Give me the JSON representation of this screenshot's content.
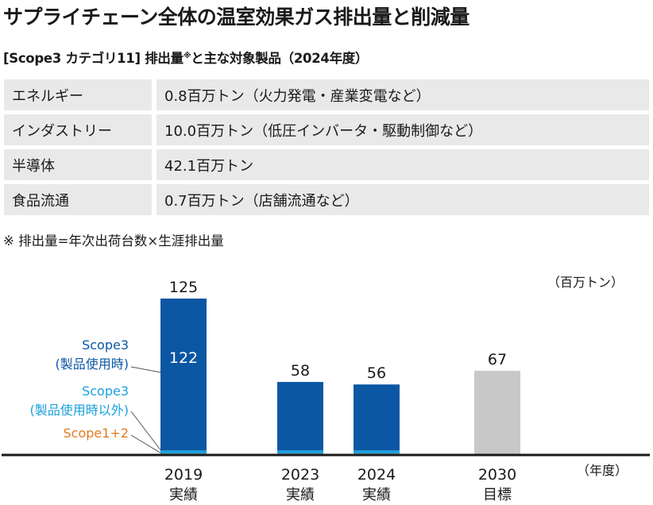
{
  "header": {
    "title": "サプライチェーン全体の温室効果ガス排出量と削減量",
    "subtitle_main": "[Scope3 カテゴリ11] 排出量",
    "subtitle_mark": "※",
    "subtitle_rest": "と主な対象製品（2024年度）"
  },
  "categories_table": {
    "rows": [
      {
        "name": "エネルギー",
        "value": "0.8百万トン（火力発電・産業変電など）"
      },
      {
        "name": "インダストリー",
        "value": "10.0百万トン（低圧インバータ・駆動制御など）"
      },
      {
        "name": "半導体",
        "value": "42.1百万トン"
      },
      {
        "name": "食品流通",
        "value": "0.7百万トン（店舗流通など）"
      }
    ]
  },
  "note": "※ 排出量=年次出荷台数×生涯排出量",
  "colors": {
    "scope3_use": "#0b57a4",
    "scope3_other": "#1aa0de",
    "scope12": "#e07a1f",
    "target": "#c8c8c8",
    "axis": "#1a1a1a"
  },
  "chart_data": {
    "type": "bar",
    "stacked": true,
    "unit_label": "（百万トン）",
    "x_axis_label": "（年度）",
    "categories": [
      {
        "year": "2019",
        "kind": "実績"
      },
      {
        "year": "2023",
        "kind": "実績"
      },
      {
        "year": "2024",
        "kind": "実績"
      },
      {
        "year": "2030",
        "kind": "目標"
      }
    ],
    "totals": [
      125,
      58,
      56,
      67
    ],
    "series": [
      {
        "name": "Scope1+2",
        "key": "scope12",
        "values": [
          0.5,
          0.5,
          0.5,
          null
        ]
      },
      {
        "name": "Scope3\n(製品使用時以外)",
        "key": "scope3_other",
        "values": [
          2.5,
          2.5,
          2.5,
          null
        ]
      },
      {
        "name": "Scope3\n(製品使用時)",
        "key": "scope3_use",
        "values": [
          122,
          55,
          53,
          null
        ]
      },
      {
        "name": "",
        "key": "target",
        "values": [
          null,
          null,
          null,
          67
        ]
      }
    ],
    "inner_labels": [
      {
        "category": 0,
        "series": "scope3_use",
        "text": "122"
      }
    ],
    "legend": {
      "scope3_use_line1": "Scope3",
      "scope3_use_line2": "(製品使用時)",
      "scope3_other_line1": "Scope3",
      "scope3_other_line2": "(製品使用時以外)",
      "scope12": "Scope1+2"
    },
    "ylim": [
      0,
      125
    ]
  }
}
